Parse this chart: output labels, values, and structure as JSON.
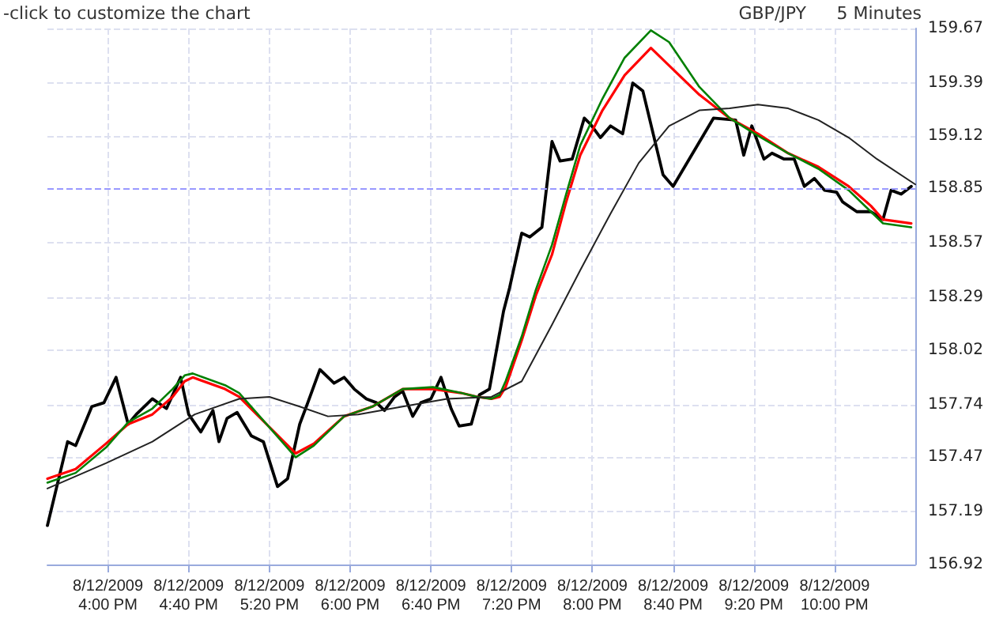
{
  "chart_data": {
    "type": "line",
    "annotations": [
      "-click to customize the chart",
      "GBP/JPY",
      "5 Minutes"
    ],
    "xlim": [
      "2009-08-12T15:30",
      "2009-08-12T22:40"
    ],
    "xticks": [
      {
        "value": "2009-08-12T16:00",
        "label": "8/12/2009\n4:00 PM"
      },
      {
        "value": "2009-08-12T16:40",
        "label": "8/12/2009\n4:40 PM"
      },
      {
        "value": "2009-08-12T17:20",
        "label": "8/12/2009\n5:20 PM"
      },
      {
        "value": "2009-08-12T18:00",
        "label": "8/12/2009\n6:00 PM"
      },
      {
        "value": "2009-08-12T18:40",
        "label": "8/12/2009\n6:40 PM"
      },
      {
        "value": "2009-08-12T19:20",
        "label": "8/12/2009\n7:20 PM"
      },
      {
        "value": "2009-08-12T20:00",
        "label": "8/12/2009\n8:00 PM"
      },
      {
        "value": "2009-08-12T20:40",
        "label": "8/12/2009\n8:40 PM"
      },
      {
        "value": "2009-08-12T21:20",
        "label": "8/12/2009\n9:20 PM"
      },
      {
        "value": "2009-08-12T22:00",
        "label": "8/12/2009\n10:00 PM"
      }
    ],
    "ylim": [
      156.92,
      159.67
    ],
    "yticks": [
      156.92,
      157.19,
      157.47,
      157.74,
      158.02,
      158.29,
      158.57,
      158.85,
      159.12,
      159.39,
      159.67
    ],
    "grid": true,
    "marker": "none",
    "line_style": "solid",
    "ref_lines": [
      {
        "axis": "y",
        "value": 158.85,
        "color": "#9999ff",
        "line_style": "dashed"
      }
    ],
    "series": [
      {
        "color": "#000000",
        "x": [
          "2009-08-12T15:30",
          "2009-08-12T15:40",
          "2009-08-12T15:44",
          "2009-08-12T15:52",
          "2009-08-12T15:58",
          "2009-08-12T16:04",
          "2009-08-12T16:10",
          "2009-08-12T16:14",
          "2009-08-12T16:22",
          "2009-08-12T16:29",
          "2009-08-12T16:36",
          "2009-08-12T16:40",
          "2009-08-12T16:46",
          "2009-08-12T16:52",
          "2009-08-12T16:55",
          "2009-08-12T16:59",
          "2009-08-12T17:04",
          "2009-08-12T17:11",
          "2009-08-12T17:17",
          "2009-08-12T17:24",
          "2009-08-12T17:29",
          "2009-08-12T17:35",
          "2009-08-12T17:39",
          "2009-08-12T17:45",
          "2009-08-12T17:52",
          "2009-08-12T17:57",
          "2009-08-12T18:02",
          "2009-08-12T18:08",
          "2009-08-12T18:13",
          "2009-08-12T18:17",
          "2009-08-12T18:22",
          "2009-08-12T18:26",
          "2009-08-12T18:31",
          "2009-08-12T18:35",
          "2009-08-12T18:40",
          "2009-08-12T18:45",
          "2009-08-12T18:50",
          "2009-08-12T18:54",
          "2009-08-12T19:00",
          "2009-08-12T19:04",
          "2009-08-12T19:09",
          "2009-08-12T19:16",
          "2009-08-12T19:19",
          "2009-08-12T19:25",
          "2009-08-12T19:29",
          "2009-08-12T19:35",
          "2009-08-12T19:40",
          "2009-08-12T19:44",
          "2009-08-12T19:50",
          "2009-08-12T19:56",
          "2009-08-12T19:59",
          "2009-08-12T20:04",
          "2009-08-12T20:09",
          "2009-08-12T20:15",
          "2009-08-12T20:20",
          "2009-08-12T20:25",
          "2009-08-12T20:35",
          "2009-08-12T20:40",
          "2009-08-12T21:00",
          "2009-08-12T21:11",
          "2009-08-12T21:15",
          "2009-08-12T21:19",
          "2009-08-12T21:25",
          "2009-08-12T21:29",
          "2009-08-12T21:35",
          "2009-08-12T21:40",
          "2009-08-12T21:45",
          "2009-08-12T21:50",
          "2009-08-12T21:55",
          "2009-08-12T22:01",
          "2009-08-12T22:04",
          "2009-08-12T22:11",
          "2009-08-12T22:18",
          "2009-08-12T22:24",
          "2009-08-12T22:28",
          "2009-08-12T22:33",
          "2009-08-12T22:38"
        ],
        "values": [
          157.12,
          157.55,
          157.53,
          157.73,
          157.75,
          157.88,
          157.64,
          157.69,
          157.77,
          157.72,
          157.88,
          157.69,
          157.6,
          157.71,
          157.55,
          157.67,
          157.7,
          157.58,
          157.55,
          157.32,
          157.36,
          157.64,
          157.75,
          157.92,
          157.85,
          157.88,
          157.82,
          157.77,
          157.75,
          157.71,
          157.78,
          157.81,
          157.68,
          157.75,
          157.77,
          157.88,
          157.72,
          157.63,
          157.64,
          157.79,
          157.82,
          158.22,
          158.34,
          158.62,
          158.6,
          158.65,
          159.09,
          158.99,
          159,
          159.21,
          159.18,
          159.11,
          159.17,
          159.13,
          159.39,
          159.35,
          158.92,
          158.86,
          159.21,
          159.2,
          159.02,
          159.17,
          159,
          159.03,
          159,
          159,
          158.86,
          158.9,
          158.84,
          158.83,
          158.78,
          158.73,
          158.73,
          158.69,
          158.84,
          158.82,
          158.86
        ]
      },
      {
        "color": "#ff0000",
        "x": [
          "2009-08-12T15:30",
          "2009-08-12T15:44",
          "2009-08-12T15:59",
          "2009-08-12T16:10",
          "2009-08-12T16:22",
          "2009-08-12T16:32",
          "2009-08-12T16:38",
          "2009-08-12T16:42",
          "2009-08-12T16:58",
          "2009-08-12T17:05",
          "2009-08-12T17:33",
          "2009-08-12T17:42",
          "2009-08-12T17:57",
          "2009-08-12T18:11",
          "2009-08-12T18:26",
          "2009-08-12T18:41",
          "2009-08-12T18:55",
          "2009-08-12T19:03",
          "2009-08-12T19:10",
          "2009-08-12T19:14",
          "2009-08-12T19:17",
          "2009-08-12T19:25",
          "2009-08-12T19:32",
          "2009-08-12T19:40",
          "2009-08-12T19:47",
          "2009-08-12T19:54",
          "2009-08-12T20:05",
          "2009-08-12T20:16",
          "2009-08-12T20:29",
          "2009-08-12T20:38",
          "2009-08-12T20:53",
          "2009-08-12T21:08",
          "2009-08-12T21:22",
          "2009-08-12T21:37",
          "2009-08-12T21:52",
          "2009-08-12T22:07",
          "2009-08-12T22:18",
          "2009-08-12T22:24",
          "2009-08-12T22:38"
        ],
        "values": [
          157.36,
          157.41,
          157.54,
          157.64,
          157.69,
          157.78,
          157.86,
          157.88,
          157.82,
          157.78,
          157.49,
          157.54,
          157.68,
          157.73,
          157.82,
          157.82,
          157.8,
          157.78,
          157.77,
          157.78,
          157.83,
          158.07,
          158.3,
          158.51,
          158.78,
          159.02,
          159.25,
          159.43,
          159.57,
          159.48,
          159.33,
          159.21,
          159.13,
          159.03,
          158.96,
          158.86,
          158.76,
          158.69,
          158.67
        ]
      },
      {
        "color": "#008000",
        "x": [
          "2009-08-12T15:30",
          "2009-08-12T15:44",
          "2009-08-12T15:59",
          "2009-08-12T16:10",
          "2009-08-12T16:22",
          "2009-08-12T16:32",
          "2009-08-12T16:38",
          "2009-08-12T16:42",
          "2009-08-12T16:58",
          "2009-08-12T17:05",
          "2009-08-12T17:33",
          "2009-08-12T17:42",
          "2009-08-12T17:57",
          "2009-08-12T18:11",
          "2009-08-12T18:26",
          "2009-08-12T18:41",
          "2009-08-12T18:55",
          "2009-08-12T19:03",
          "2009-08-12T19:10",
          "2009-08-12T19:14",
          "2009-08-12T19:17",
          "2009-08-12T19:25",
          "2009-08-12T19:32",
          "2009-08-12T19:40",
          "2009-08-12T19:47",
          "2009-08-12T19:54",
          "2009-08-12T20:05",
          "2009-08-12T20:16",
          "2009-08-12T20:29",
          "2009-08-12T20:38",
          "2009-08-12T20:53",
          "2009-08-12T21:08",
          "2009-08-12T21:22",
          "2009-08-12T21:37",
          "2009-08-12T21:52",
          "2009-08-12T22:07",
          "2009-08-12T22:18",
          "2009-08-12T22:24",
          "2009-08-12T22:38"
        ],
        "values": [
          157.34,
          157.39,
          157.52,
          157.65,
          157.72,
          157.82,
          157.89,
          157.9,
          157.84,
          157.8,
          157.47,
          157.53,
          157.68,
          157.73,
          157.82,
          157.83,
          157.8,
          157.78,
          157.77,
          157.79,
          157.86,
          158.09,
          158.33,
          158.56,
          158.82,
          159.07,
          159.31,
          159.52,
          159.66,
          159.6,
          159.37,
          159.21,
          159.12,
          159.03,
          158.95,
          158.84,
          158.73,
          158.67,
          158.65
        ]
      },
      {
        "color": "#222222",
        "x": [
          "2009-08-12T15:30",
          "2009-08-12T15:59",
          "2009-08-12T16:22",
          "2009-08-12T16:43",
          "2009-08-12T17:05",
          "2009-08-12T17:20",
          "2009-08-12T17:35",
          "2009-08-12T17:49",
          "2009-08-12T18:04",
          "2009-08-12T18:26",
          "2009-08-12T18:48",
          "2009-08-12T19:10",
          "2009-08-12T19:25",
          "2009-08-12T19:40",
          "2009-08-12T19:54",
          "2009-08-12T20:09",
          "2009-08-12T20:23",
          "2009-08-12T20:38",
          "2009-08-12T20:53",
          "2009-08-12T21:08",
          "2009-08-12T21:22",
          "2009-08-12T21:37",
          "2009-08-12T21:52",
          "2009-08-12T22:07",
          "2009-08-12T22:21",
          "2009-08-12T22:40"
        ],
        "values": [
          157.31,
          157.44,
          157.55,
          157.69,
          157.77,
          157.78,
          157.73,
          157.68,
          157.69,
          157.73,
          157.77,
          157.78,
          157.86,
          158.15,
          158.43,
          158.72,
          158.98,
          159.17,
          159.25,
          159.26,
          159.28,
          159.26,
          159.2,
          159.11,
          159,
          158.87
        ]
      }
    ]
  }
}
